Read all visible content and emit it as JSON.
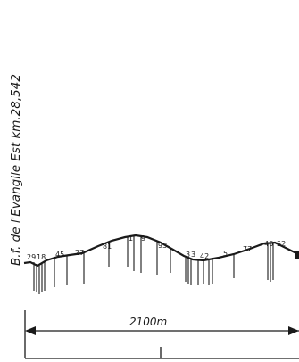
{
  "station_title": "B.f. de l'Evangile Est km.28,542",
  "profile_labels": [
    "29",
    "18",
    "45",
    "27",
    "81",
    "1",
    "9",
    "93",
    "3",
    "3",
    "42",
    "5",
    "77",
    "46",
    "52"
  ],
  "distance_label": "2100m",
  "colors": {
    "ink": "#1a1a1a",
    "paper": "#ffffff"
  }
}
